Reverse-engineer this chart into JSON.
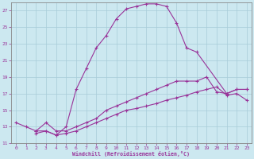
{
  "xlabel": "Windchill (Refroidissement éolien,°C)",
  "xlim": [
    -0.5,
    23.5
  ],
  "ylim": [
    11,
    28
  ],
  "yticks": [
    11,
    13,
    15,
    17,
    19,
    21,
    23,
    25,
    27
  ],
  "xticks": [
    0,
    1,
    2,
    3,
    4,
    5,
    6,
    7,
    8,
    9,
    10,
    11,
    12,
    13,
    14,
    15,
    16,
    17,
    18,
    19,
    20,
    21,
    22,
    23
  ],
  "background_color": "#cce8f0",
  "line_color": "#993399",
  "curve1_x": [
    0,
    1,
    2,
    3,
    4,
    5,
    6,
    7,
    8,
    9,
    10,
    11,
    12,
    13,
    14,
    15,
    16,
    17,
    18,
    21,
    22,
    23
  ],
  "curve1_y": [
    13.5,
    13.0,
    12.5,
    12.5,
    12.0,
    13.0,
    17.5,
    20.0,
    22.5,
    24.0,
    26.0,
    27.2,
    27.5,
    27.8,
    27.8,
    27.5,
    25.5,
    22.5,
    22.0,
    17.0,
    17.5,
    17.5
  ],
  "curve2_x": [
    2,
    3,
    4,
    5,
    6,
    7,
    8,
    9,
    10,
    11,
    12,
    13,
    14,
    15,
    16,
    17,
    18,
    19,
    20,
    21,
    22,
    23
  ],
  "curve2_y": [
    12.5,
    13.5,
    12.5,
    12.5,
    13.0,
    13.5,
    14.0,
    15.0,
    15.5,
    16.0,
    16.5,
    17.0,
    17.5,
    18.0,
    18.5,
    18.5,
    18.5,
    19.0,
    17.2,
    17.0,
    17.5,
    17.5
  ],
  "curve3_x": [
    2,
    3,
    4,
    5,
    6,
    7,
    8,
    9,
    10,
    11,
    12,
    13,
    14,
    15,
    16,
    17,
    18,
    19,
    20,
    21,
    22,
    23
  ],
  "curve3_y": [
    12.2,
    12.5,
    12.0,
    12.2,
    12.5,
    13.0,
    13.5,
    14.0,
    14.5,
    15.0,
    15.2,
    15.5,
    15.8,
    16.2,
    16.5,
    16.8,
    17.2,
    17.5,
    17.8,
    16.8,
    17.0,
    16.2
  ]
}
